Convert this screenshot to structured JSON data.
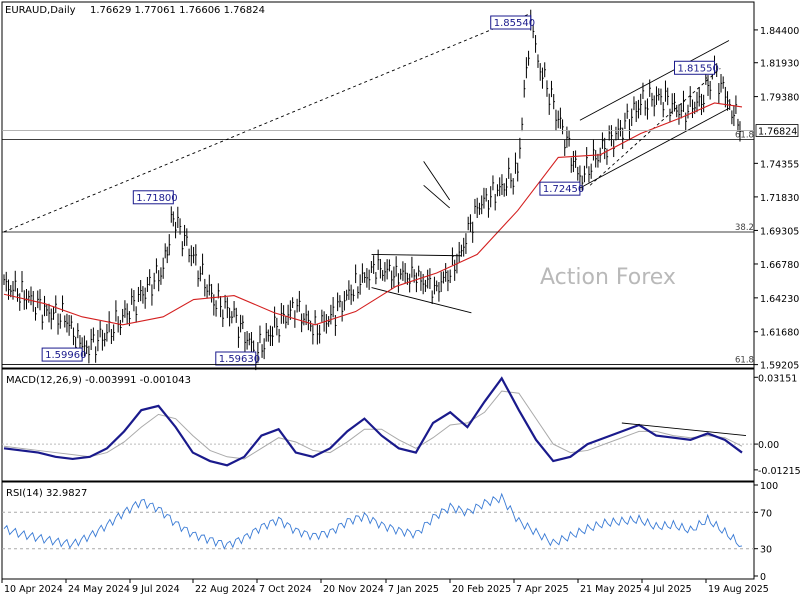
{
  "header": {
    "symbol": "EURAUD,Daily",
    "ohlc": "1.76629 1.77061 1.76606 1.76824"
  },
  "watermark": "Action Forex",
  "colors": {
    "price": "#000000",
    "sma": "#d42020",
    "macd": "#1a1a8c",
    "signal": "#aaaaaa",
    "rsi": "#3a7bd5",
    "channel": "#000000",
    "labels": "#1a1a8c"
  },
  "chart_data": [
    {
      "type": "line",
      "panel": "price",
      "y_ticks": [
        "1.84400",
        "1.81930",
        "1.79380",
        "1.76824",
        "1.74355",
        "1.71830",
        "1.69305",
        "1.66780",
        "1.64230",
        "1.61680",
        "1.59205"
      ],
      "current_price": "1.76824",
      "ylim": [
        1.591,
        1.862
      ],
      "x_labels": [
        "10 Apr 2024",
        "24 May 2024",
        "9 Jul 2024",
        "22 Aug 2024",
        "7 Oct 2024",
        "20 Nov 2024",
        "7 Jan 2025",
        "20 Feb 2025",
        "7 Apr 2025",
        "21 May 2025",
        "4 Jul 2025",
        "19 Aug 2025"
      ],
      "annotations": [
        {
          "text": "1.59960",
          "x": "2024-06-03",
          "y": 1.5996
        },
        {
          "text": "1.71800",
          "x": "2024-08-05",
          "y": 1.718
        },
        {
          "text": "1.59630",
          "x": "2024-10-01",
          "y": 1.5963
        },
        {
          "text": "1.85540",
          "x": "2025-04-09",
          "y": 1.8554
        },
        {
          "text": "1.72450",
          "x": "2025-05-13",
          "y": 1.7245
        },
        {
          "text": "1.81550",
          "x": "2025-08-14",
          "y": 1.8155
        }
      ],
      "fib_levels": [
        {
          "label": "61.8",
          "y": 1.7614
        },
        {
          "label": "38.2",
          "y": 1.6919
        },
        {
          "label": "61.8",
          "y": 1.5921
        }
      ],
      "series": [
        {
          "name": "",
          "x": [
            "2024-04-10",
            "2024-04-24",
            "2024-05-08",
            "2024-05-22",
            "2024-06-03",
            "2024-06-17",
            "2024-07-01",
            "2024-07-15",
            "2024-07-29",
            "2024-08-05",
            "2024-08-19",
            "2024-09-02",
            "2024-09-16",
            "2024-10-01",
            "2024-10-14",
            "2024-10-28",
            "2024-11-11",
            "2024-11-25",
            "2024-12-09",
            "2024-12-23",
            "2025-01-06",
            "2025-01-20",
            "2025-02-03",
            "2025-02-17",
            "2025-03-03",
            "2025-03-17",
            "2025-03-31",
            "2025-04-09",
            "2025-04-14",
            "2025-04-28",
            "2025-05-13",
            "2025-05-27",
            "2025-06-10",
            "2025-06-24",
            "2025-07-08",
            "2025-07-22",
            "2025-08-05",
            "2025-08-14",
            "2025-08-26",
            "2025-09-02"
          ],
          "values": [
            1.652,
            1.645,
            1.632,
            1.628,
            1.603,
            1.612,
            1.628,
            1.645,
            1.664,
            1.703,
            1.672,
            1.641,
            1.628,
            1.601,
            1.619,
            1.636,
            1.618,
            1.631,
            1.652,
            1.664,
            1.661,
            1.657,
            1.65,
            1.668,
            1.711,
            1.722,
            1.738,
            1.851,
            1.82,
            1.778,
            1.732,
            1.752,
            1.768,
            1.789,
            1.794,
            1.781,
            1.792,
            1.812,
            1.786,
            1.768
          ]
        },
        {
          "name": "",
          "x": [
            "2024-04-10",
            "2024-05-08",
            "2024-06-03",
            "2024-07-01",
            "2024-07-29",
            "2024-08-19",
            "2024-09-16",
            "2024-10-14",
            "2024-11-11",
            "2024-12-09",
            "2025-01-06",
            "2025-02-03",
            "2025-03-03",
            "2025-03-31",
            "2025-04-28",
            "2025-05-27",
            "2025-06-24",
            "2025-07-22",
            "2025-08-14",
            "2025-09-02"
          ],
          "values": [
            1.645,
            1.638,
            1.628,
            1.622,
            1.628,
            1.641,
            1.644,
            1.631,
            1.622,
            1.632,
            1.651,
            1.661,
            1.675,
            1.708,
            1.748,
            1.75,
            1.766,
            1.778,
            1.789,
            1.786
          ]
        }
      ]
    },
    {
      "type": "line",
      "panel": "macd",
      "title": "MACD(12,26,9) -0.003991 -0.001043",
      "y_ticks": [
        "0.03151",
        "0.00",
        "-0.012158"
      ],
      "ylim": [
        -0.016,
        0.034
      ],
      "series": [
        {
          "name": "",
          "values": [
            -0.002,
            -0.003,
            -0.004,
            -0.006,
            -0.007,
            -0.006,
            -0.002,
            0.006,
            0.016,
            0.018,
            0.008,
            -0.004,
            -0.008,
            -0.01,
            -0.006,
            0.004,
            0.007,
            -0.004,
            -0.006,
            -0.002,
            0.006,
            0.012,
            0.004,
            -0.002,
            -0.004,
            0.01,
            0.015,
            0.008,
            0.02,
            0.031,
            0.016,
            0.002,
            -0.008,
            -0.006,
            0.0,
            0.003,
            0.006,
            0.009,
            0.004,
            0.003,
            0.002,
            0.005,
            0.002,
            -0.004
          ]
        },
        {
          "name": "",
          "values": [
            -0.001,
            -0.002,
            -0.003,
            -0.004,
            -0.005,
            -0.006,
            -0.004,
            0.001,
            0.008,
            0.014,
            0.012,
            0.004,
            -0.003,
            -0.006,
            -0.007,
            -0.002,
            0.003,
            0.001,
            -0.003,
            -0.004,
            0.001,
            0.007,
            0.007,
            0.002,
            -0.002,
            0.003,
            0.009,
            0.01,
            0.015,
            0.025,
            0.024,
            0.012,
            0.0,
            -0.004,
            -0.003,
            0.0,
            0.003,
            0.006,
            0.006,
            0.004,
            0.003,
            0.004,
            0.003,
            -0.001
          ]
        }
      ]
    },
    {
      "type": "line",
      "panel": "rsi",
      "title": "RSI(14) 32.9827",
      "y_ticks": [
        "100",
        "70",
        "30",
        "0"
      ],
      "ylim": [
        0,
        100
      ],
      "series": [
        {
          "name": "",
          "values": [
            52,
            46,
            42,
            38,
            35,
            44,
            56,
            70,
            82,
            74,
            58,
            46,
            40,
            34,
            42,
            54,
            62,
            50,
            44,
            48,
            60,
            66,
            56,
            50,
            46,
            64,
            76,
            70,
            80,
            86,
            60,
            48,
            36,
            44,
            52,
            58,
            60,
            62,
            54,
            56,
            50,
            62,
            48,
            33
          ]
        }
      ]
    }
  ]
}
